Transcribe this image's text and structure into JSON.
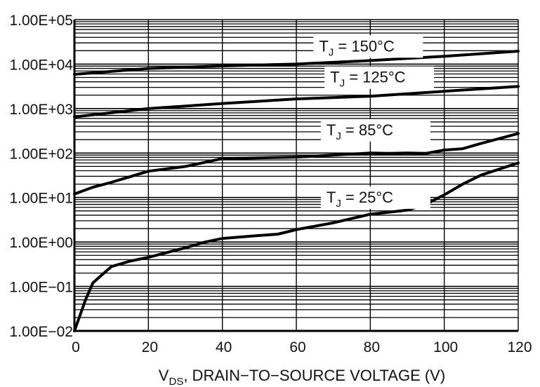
{
  "chart_data": {
    "type": "line",
    "title": "",
    "xlabel_main": "V",
    "xlabel_sub": "DS",
    "xlabel_rest": ", DRAIN−TO−SOURCE VOLTAGE (V)",
    "ylabel": "",
    "xlim": [
      0,
      120
    ],
    "ylim": [
      0.01,
      100000
    ],
    "yscale": "log",
    "grid": true,
    "x_ticks": [
      "0",
      "20",
      "40",
      "60",
      "80",
      "100",
      "120"
    ],
    "x_tick_values": [
      0,
      20,
      40,
      60,
      80,
      100,
      120
    ],
    "y_ticks": [
      "1.00E+05",
      "1.00E+04",
      "1.00E+03",
      "1.00E+02",
      "1.00E+01",
      "1.00E+00",
      "1.00E−01",
      "1.00E−02"
    ],
    "y_tick_values": [
      100000,
      10000,
      1000,
      100,
      10,
      1,
      0.1,
      0.01
    ],
    "line_color": "#000000",
    "series": [
      {
        "label_main": "T",
        "label_sub": "J",
        "label_rest": " = 150°C",
        "label_at": [
          65,
          20000
        ],
        "x": [
          0,
          20,
          40,
          60,
          80,
          100,
          120
        ],
        "y": [
          5900,
          8000,
          9100,
          10000,
          12000,
          15000,
          19500
        ]
      },
      {
        "label_main": "T",
        "label_sub": "J",
        "label_rest": " = 125°C",
        "label_at": [
          68,
          4000
        ],
        "x": [
          0,
          20,
          40,
          60,
          80,
          100,
          120
        ],
        "y": [
          650,
          1000,
          1300,
          1650,
          1900,
          2450,
          3150
        ]
      },
      {
        "label_main": "T",
        "label_sub": "J",
        "label_rest": " = 85°C",
        "label_at": [
          67,
          260
        ],
        "x": [
          0,
          5,
          10,
          20,
          30,
          40,
          60,
          80,
          85,
          90,
          95,
          100,
          105,
          110,
          120
        ],
        "y": [
          12,
          17,
          22,
          39,
          50,
          75,
          81,
          100,
          98,
          100,
          98,
          117,
          125,
          165,
          275
        ]
      },
      {
        "label_main": "T",
        "label_sub": "J",
        "label_rest": " = 25°C",
        "label_at": [
          67,
          8
        ],
        "x": [
          0,
          3,
          5,
          7,
          10,
          15,
          20,
          30,
          35,
          40,
          50,
          55,
          60,
          70,
          80,
          90,
          95,
          100,
          105,
          110,
          120
        ],
        "y": [
          0.01,
          0.05,
          0.12,
          0.17,
          0.28,
          0.37,
          0.45,
          0.74,
          0.98,
          1.2,
          1.4,
          1.5,
          1.9,
          2.7,
          4.2,
          5.2,
          7,
          11.5,
          20,
          32,
          60
        ]
      }
    ]
  }
}
